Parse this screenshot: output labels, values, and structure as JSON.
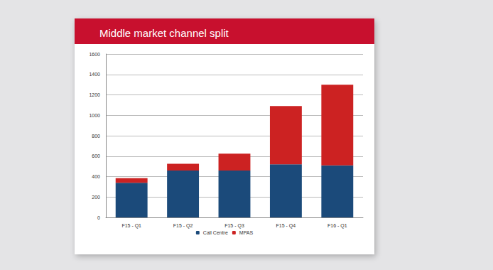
{
  "chart_data": {
    "type": "bar",
    "title": "Middle market channel split",
    "categories": [
      "F15 - Q1",
      "F15 - Q2",
      "F15 - Q3",
      "F15 - Q4",
      "F16 - Q1"
    ],
    "series": [
      {
        "name": "Call Centre",
        "color": "#1b4a7a",
        "values": [
          340,
          460,
          460,
          520,
          510
        ]
      },
      {
        "name": "MPAS",
        "color": "#cc2222",
        "values": [
          45,
          65,
          165,
          570,
          790
        ]
      }
    ],
    "stacked": true,
    "ylim": [
      0,
      1600
    ],
    "yticks": [
      0,
      200,
      400,
      600,
      800,
      1000,
      1200,
      1400,
      1600
    ],
    "grid": true,
    "legend": "bottom"
  }
}
